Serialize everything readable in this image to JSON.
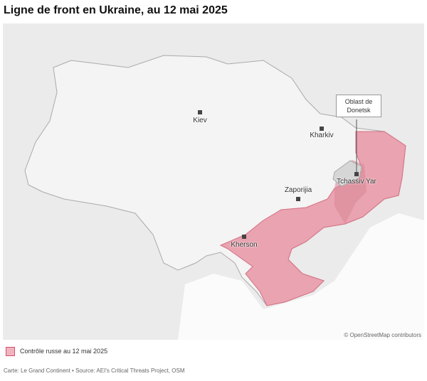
{
  "title": "Ligne de front en Ukraine, au 12 mai 2025",
  "map": {
    "cities": [
      {
        "label": "Kiev"
      },
      {
        "label": "Kharkiv"
      },
      {
        "label": "Zaporijia"
      },
      {
        "label": "Kherson"
      },
      {
        "label": "Tchassiv Yar"
      }
    ],
    "annotation": "Oblast de Donetsk",
    "attribution": "© OpenStreetMap contributors"
  },
  "legend": {
    "label": "Contrôle russe au 12 mai 2025"
  },
  "source": "Carte: Le Grand Continent • Source: AEI's Critical Threats Project, OSM"
}
